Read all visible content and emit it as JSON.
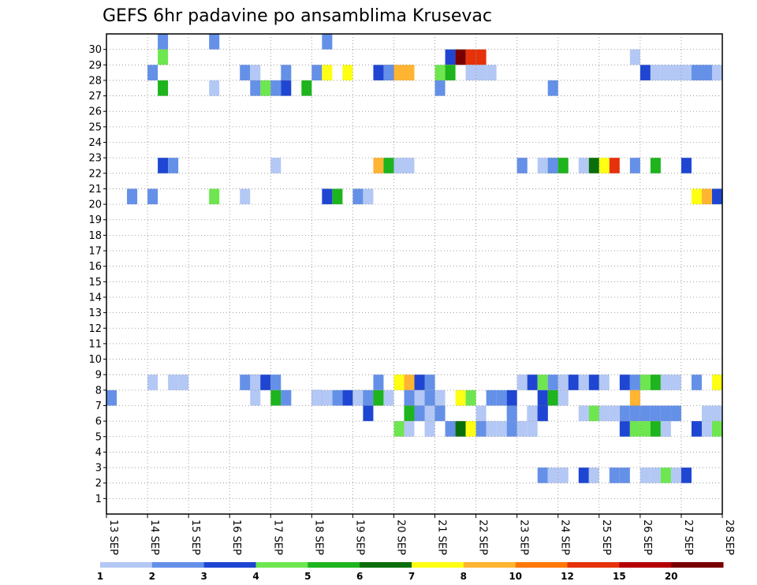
{
  "chart_data": {
    "type": "heatmap",
    "title": "GEFS 6hr padavine po ansamblima Krusevac",
    "x_tick_labels": [
      "13 SEP",
      "14 SEP",
      "15 SEP",
      "16 SEP",
      "17 SEP",
      "18 SEP",
      "19 SEP",
      "20 SEP",
      "21 SEP",
      "22 SEP",
      "23 SEP",
      "24 SEP",
      "25 SEP",
      "26 SEP",
      "27 SEP",
      "28 SEP"
    ],
    "y_tick_labels": [
      "1",
      "2",
      "3",
      "4",
      "5",
      "6",
      "7",
      "8",
      "9",
      "10",
      "11",
      "12",
      "13",
      "14",
      "15",
      "16",
      "17",
      "18",
      "19",
      "20",
      "21",
      "22",
      "23",
      "24",
      "25",
      "26",
      "27",
      "28",
      "29",
      "30"
    ],
    "x_range": [
      "13 SEP",
      "28 SEP"
    ],
    "steps_per_day": 4,
    "ensemble_range": [
      1,
      30
    ],
    "grid": true,
    "legend": {
      "position": "bottom",
      "labels": [
        "1",
        "2",
        "3",
        "4",
        "5",
        "6",
        "7",
        "8",
        "10",
        "12",
        "15",
        "20"
      ],
      "colors": [
        "#b4c8f5",
        "#6490e8",
        "#1e46d2",
        "#6ee650",
        "#1eb41e",
        "#0a6e0a",
        "#ffff14",
        "#ffb432",
        "#ff780a",
        "#e6320a",
        "#b40000",
        "#780000"
      ]
    },
    "cells": [
      [
        5,
        1,
        0
      ],
      [
        10,
        1,
        0
      ],
      [
        21,
        1,
        0
      ],
      [
        5,
        3,
        0
      ],
      [
        33,
        2,
        0
      ],
      [
        34,
        11,
        0
      ],
      [
        35,
        9,
        0
      ],
      [
        36,
        9,
        0
      ],
      [
        51,
        0,
        0
      ],
      [
        17,
        1,
        0
      ],
      [
        20,
        1,
        0
      ],
      [
        21,
        6,
        0
      ],
      [
        23,
        6,
        0
      ],
      [
        26,
        2,
        0
      ],
      [
        27,
        2,
        0
      ],
      [
        27,
        1,
        0
      ],
      [
        28,
        7,
        0
      ],
      [
        29,
        7,
        0
      ],
      [
        32,
        3,
        0
      ],
      [
        33,
        6,
        0
      ],
      [
        33,
        4,
        0
      ],
      [
        35,
        0,
        0
      ],
      [
        36,
        0,
        0
      ],
      [
        37,
        0,
        0
      ],
      [
        52,
        2,
        0
      ],
      [
        53,
        0,
        0
      ],
      [
        54,
        0,
        0
      ],
      [
        55,
        0,
        0
      ],
      [
        56,
        0,
        0
      ],
      [
        57,
        1,
        0
      ],
      [
        58,
        1,
        0
      ],
      [
        59,
        0,
        0
      ],
      [
        4,
        1,
        0
      ],
      [
        13,
        1,
        0
      ],
      [
        14,
        0,
        0
      ],
      [
        15,
        3,
        0
      ],
      [
        16,
        1,
        0
      ],
      [
        17,
        2,
        0
      ],
      [
        19,
        4,
        0
      ],
      [
        32,
        1,
        0
      ],
      [
        43,
        1,
        0
      ],
      [
        5,
        4,
        0
      ],
      [
        10,
        0,
        0
      ],
      [
        14,
        1,
        0
      ],
      [
        16,
        0,
        0
      ],
      [
        28,
        0,
        0
      ],
      [
        29,
        0,
        0
      ],
      [
        40,
        0,
        0
      ],
      [
        40,
        1,
        0
      ],
      [
        43,
        4,
        0
      ],
      [
        43,
        3,
        0
      ],
      [
        46,
        0,
        0
      ],
      [
        47,
        5,
        0
      ],
      [
        48,
        6,
        0
      ],
      [
        49,
        9,
        0
      ],
      [
        51,
        1,
        0
      ],
      [
        53,
        4,
        0
      ],
      [
        5,
        2,
        0
      ],
      [
        6,
        1,
        0
      ],
      [
        26,
        7,
        0
      ],
      [
        27,
        4,
        0
      ],
      [
        42,
        0,
        0
      ],
      [
        43,
        1,
        0
      ],
      [
        44,
        4,
        0
      ],
      [
        56,
        2,
        0
      ],
      [
        57,
        6,
        0
      ],
      [
        58,
        7,
        0
      ],
      [
        59,
        2,
        0
      ],
      [
        2,
        1,
        0
      ],
      [
        4,
        1,
        0
      ],
      [
        10,
        3,
        0
      ],
      [
        13,
        0,
        0
      ],
      [
        21,
        2,
        0
      ],
      [
        22,
        4,
        0
      ],
      [
        24,
        1,
        0
      ],
      [
        25,
        0,
        0
      ],
      [
        26,
        1,
        0
      ],
      [
        28,
        6,
        0
      ],
      [
        29,
        7,
        0
      ],
      [
        30,
        2,
        0
      ],
      [
        31,
        1,
        0
      ],
      [
        40,
        0,
        0
      ],
      [
        41,
        2,
        0
      ],
      [
        42,
        3,
        0
      ],
      [
        43,
        1,
        0
      ],
      [
        44,
        0,
        0
      ],
      [
        45,
        2,
        0
      ],
      [
        46,
        0,
        0
      ],
      [
        47,
        2,
        0
      ],
      [
        48,
        0,
        0
      ],
      [
        50,
        2,
        0
      ],
      [
        51,
        1,
        0
      ],
      [
        52,
        3,
        0
      ],
      [
        53,
        4,
        0
      ],
      [
        54,
        0,
        0
      ],
      [
        55,
        0,
        0
      ],
      [
        57,
        1,
        0
      ],
      [
        59,
        0,
        0
      ],
      [
        59,
        6,
        0
      ],
      [
        4,
        0,
        0
      ],
      [
        6,
        0,
        0
      ],
      [
        7,
        0,
        0
      ],
      [
        13,
        1,
        0
      ],
      [
        14,
        1,
        0
      ],
      [
        14,
        0,
        0
      ],
      [
        15,
        2,
        0
      ],
      [
        16,
        1,
        0
      ],
      [
        17,
        0,
        0
      ],
      [
        20,
        0,
        0
      ],
      [
        20,
        2,
        0
      ],
      [
        20,
        1,
        0
      ],
      [
        22,
        1,
        0
      ],
      [
        23,
        0,
        0
      ],
      [
        24,
        0,
        0
      ],
      [
        24,
        4,
        0
      ],
      [
        25,
        0,
        0
      ],
      [
        29,
        1,
        0
      ],
      [
        30,
        2,
        0
      ],
      [
        31,
        1,
        0
      ],
      [
        32,
        0,
        0
      ],
      [
        34,
        6,
        0
      ],
      [
        35,
        3,
        0
      ],
      [
        37,
        1,
        0
      ],
      [
        38,
        1,
        0
      ],
      [
        39,
        2,
        0
      ],
      [
        42,
        2,
        0
      ],
      [
        43,
        4,
        0
      ],
      [
        44,
        0,
        0
      ],
      [
        51,
        7,
        0
      ],
      [
        0,
        1,
        0
      ],
      [
        14,
        0,
        0
      ],
      [
        16,
        4,
        0
      ],
      [
        17,
        1,
        0
      ],
      [
        20,
        0,
        0
      ],
      [
        21,
        0,
        0
      ],
      [
        23,
        2,
        0
      ],
      [
        24,
        0,
        0
      ],
      [
        25,
        1,
        0
      ],
      [
        26,
        4,
        0
      ],
      [
        27,
        0,
        0
      ],
      [
        30,
        0,
        0
      ],
      [
        31,
        1,
        0
      ],
      [
        41,
        2,
        0
      ],
      [
        42,
        2,
        0
      ],
      [
        46,
        0,
        0
      ],
      [
        47,
        0,
        0
      ],
      [
        48,
        0,
        0
      ],
      [
        50,
        1,
        0
      ],
      [
        51,
        1,
        0
      ],
      [
        52,
        1,
        0
      ],
      [
        53,
        1,
        0
      ],
      [
        54,
        1,
        0
      ],
      [
        55,
        1,
        0
      ],
      [
        58,
        0,
        0
      ],
      [
        59,
        0,
        0
      ],
      [
        25,
        2,
        0
      ],
      [
        29,
        4,
        0
      ],
      [
        30,
        1,
        0
      ],
      [
        31,
        0,
        0
      ],
      [
        32,
        1,
        0
      ],
      [
        36,
        0,
        0
      ],
      [
        39,
        1,
        0
      ],
      [
        41,
        0,
        0
      ],
      [
        42,
        2,
        0
      ],
      [
        47,
        3,
        0
      ],
      [
        48,
        0,
        0
      ],
      [
        49,
        0,
        0
      ],
      [
        50,
        2,
        0
      ],
      [
        51,
        3,
        0
      ],
      [
        52,
        3,
        0
      ],
      [
        53,
        4,
        0
      ],
      [
        54,
        0,
        0
      ],
      [
        57,
        2,
        0
      ],
      [
        58,
        0,
        0
      ],
      [
        59,
        3,
        0
      ],
      [
        28,
        3,
        0
      ],
      [
        29,
        0,
        0
      ],
      [
        31,
        0,
        0
      ],
      [
        33,
        1,
        0
      ],
      [
        34,
        5,
        0
      ],
      [
        35,
        6,
        0
      ],
      [
        36,
        1,
        0
      ],
      [
        37,
        0,
        0
      ],
      [
        38,
        0,
        0
      ],
      [
        39,
        1,
        0
      ],
      [
        40,
        0,
        0
      ],
      [
        41,
        0,
        0
      ],
      [
        42,
        1,
        0
      ],
      [
        43,
        0,
        0
      ],
      [
        44,
        0,
        0
      ],
      [
        46,
        2,
        0
      ],
      [
        47,
        0,
        0
      ],
      [
        49,
        1,
        0
      ],
      [
        50,
        1,
        0
      ],
      [
        52,
        0,
        0
      ],
      [
        53,
        0,
        0
      ],
      [
        54,
        3,
        0
      ],
      [
        55,
        0,
        0
      ],
      [
        56,
        2,
        0
      ]
    ]
  },
  "cell_colors_by_label": {
    "1": "#b4c8f5",
    "2": "#6490e8",
    "3": "#1e46d2",
    "4": "#6ee650",
    "5": "#1eb41e",
    "6": "#0a6e0a",
    "7": "#ffff14",
    "8": "#ffb432",
    "10": "#ff780a",
    "12": "#e6320a",
    "15": "#b40000",
    "20": "#780000"
  }
}
